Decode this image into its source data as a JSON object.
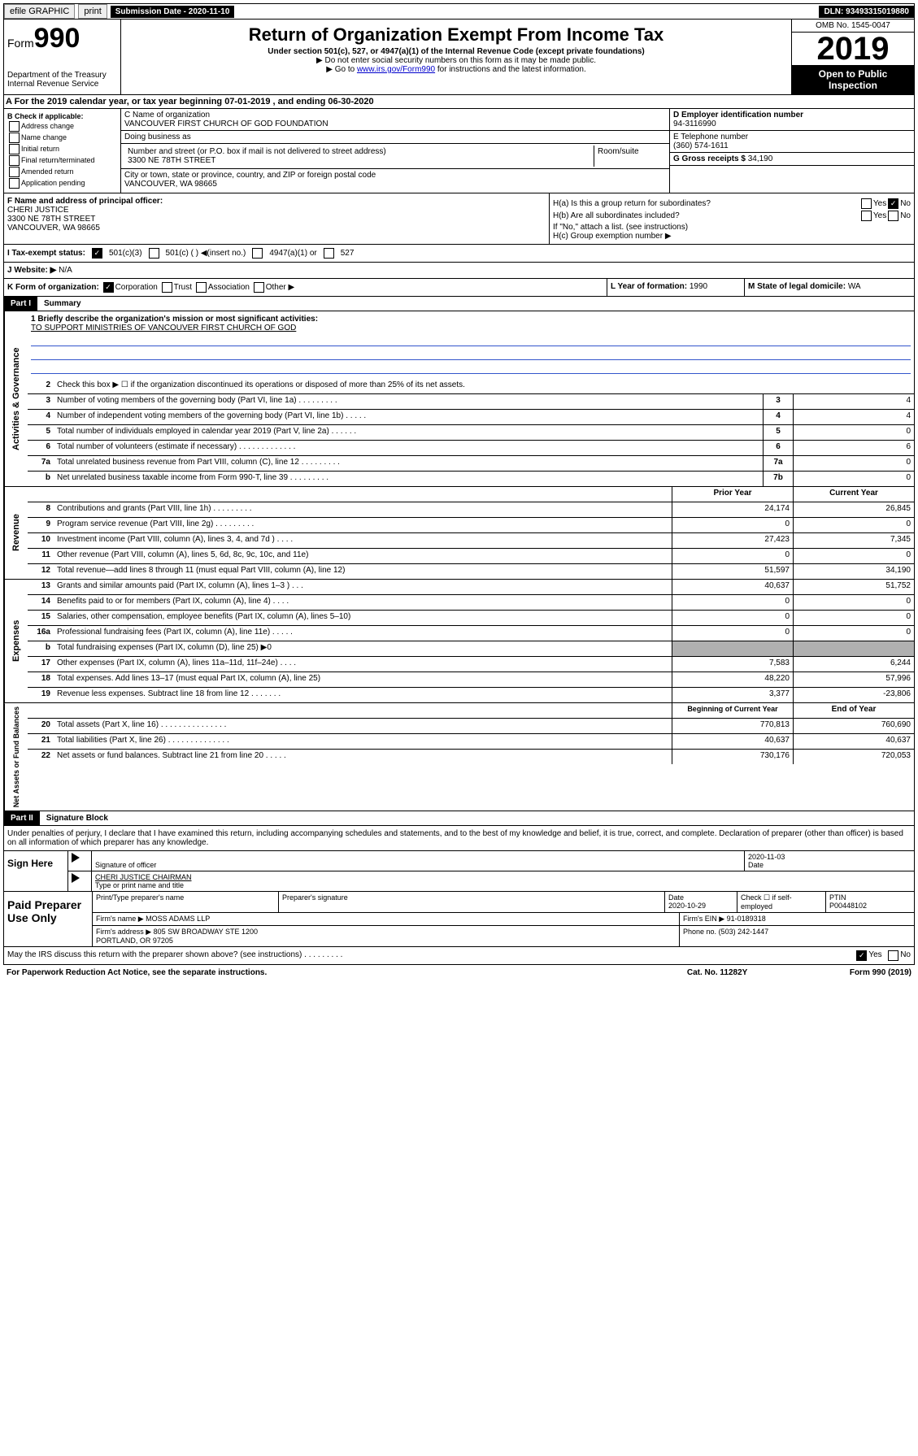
{
  "topbar": {
    "efile": "efile GRAPHIC",
    "print": "print",
    "subdate_lbl": "Submission Date - 2020-11-10",
    "dln": "DLN: 93493315019880"
  },
  "header": {
    "form_lbl": "Form",
    "form_num": "990",
    "title": "Return of Organization Exempt From Income Tax",
    "sub": "Under section 501(c), 527, or 4947(a)(1) of the Internal Revenue Code (except private foundations)",
    "note1": "▶ Do not enter social security numbers on this form as it may be made public.",
    "note2": "▶ Go to ",
    "note2_link": "www.irs.gov/Form990",
    "note2_rest": " for instructions and the latest information.",
    "dept": "Department of the Treasury\nInternal Revenue Service",
    "omb": "OMB No. 1545-0047",
    "year": "2019",
    "open": "Open to Public\nInspection"
  },
  "taxyear": "A For the 2019 calendar year, or tax year beginning 07-01-2019   , and ending 06-30-2020",
  "b": {
    "hdr": "B Check if applicable:",
    "items": [
      "Address change",
      "Name change",
      "Initial return",
      "Final return/terminated",
      "Amended return",
      "Application pending"
    ]
  },
  "c": {
    "name_lbl": "C Name of organization",
    "name": "VANCOUVER FIRST CHURCH OF GOD FOUNDATION",
    "dba_lbl": "Doing business as",
    "dba": "",
    "addr_lbl": "Number and street (or P.O. box if mail is not delivered to street address)",
    "room_lbl": "Room/suite",
    "addr": "3300 NE 78TH STREET",
    "city_lbl": "City or town, state or province, country, and ZIP or foreign postal code",
    "city": "VANCOUVER, WA  98665"
  },
  "d": {
    "ein_lbl": "D Employer identification number",
    "ein": "94-3116990"
  },
  "e": {
    "tel_lbl": "E Telephone number",
    "tel": "(360) 574-1611"
  },
  "g": {
    "lbl": "G Gross receipts $",
    "val": "34,190"
  },
  "f": {
    "lbl": "F  Name and address of principal officer:",
    "name": "CHERI JUSTICE",
    "addr": "3300 NE 78TH STREET\nVANCOUVER, WA  98665"
  },
  "h": {
    "a": "H(a)  Is this a group return for subordinates?",
    "a_yes": "Yes",
    "a_no": "No",
    "b": "H(b)  Are all subordinates included?",
    "b_note": "If \"No,\" attach a list. (see instructions)",
    "c": "H(c)  Group exemption number ▶"
  },
  "i": {
    "lbl": "I  Tax-exempt status:",
    "opts": [
      "501(c)(3)",
      "501(c) (  ) ◀(insert no.)",
      "4947(a)(1) or",
      "527"
    ]
  },
  "j": {
    "lbl": "J  Website: ▶",
    "val": "N/A"
  },
  "k": {
    "lbl": "K Form of organization:",
    "opts": [
      "Corporation",
      "Trust",
      "Association",
      "Other ▶"
    ]
  },
  "l": {
    "lbl": "L Year of formation:",
    "val": "1990"
  },
  "m": {
    "lbl": "M State of legal domicile:",
    "val": "WA"
  },
  "part1": {
    "hdr": "Part I",
    "title": "Summary"
  },
  "mission": {
    "lbl": "1   Briefly describe the organization's mission or most significant activities:",
    "txt": "TO SUPPORT MINISTRIES OF VANCOUVER FIRST CHURCH OF GOD"
  },
  "gov": {
    "side": "Activities & Governance",
    "r2": "Check this box ▶ ☐  if the organization discontinued its operations or disposed of more than 25% of its net assets.",
    "rows": [
      {
        "n": "3",
        "t": "Number of voting members of the governing body (Part VI, line 1a)  .    .    .    .    .    .    .    .    .",
        "c": "3",
        "v": "4"
      },
      {
        "n": "4",
        "t": "Number of independent voting members of the governing body (Part VI, line 1b)  .    .    .    .    .",
        "c": "4",
        "v": "4"
      },
      {
        "n": "5",
        "t": "Total number of individuals employed in calendar year 2019 (Part V, line 2a)  .    .    .    .    .    .",
        "c": "5",
        "v": "0"
      },
      {
        "n": "6",
        "t": "Total number of volunteers (estimate if necessary)  .    .    .    .    .    .    .    .    .    .    .    .    .",
        "c": "6",
        "v": "6"
      },
      {
        "n": "7a",
        "t": "Total unrelated business revenue from Part VIII, column (C), line 12  .    .    .    .    .    .    .    .    .",
        "c": "7a",
        "v": "0"
      },
      {
        "n": "b",
        "t": "Net unrelated business taxable income from Form 990-T, line 39  .    .    .    .    .    .    .    .    .",
        "c": "7b",
        "v": "0"
      }
    ]
  },
  "rev": {
    "side": "Revenue",
    "hdr1": "Prior Year",
    "hdr2": "Current Year",
    "rows": [
      {
        "n": "8",
        "t": "Contributions and grants (Part VIII, line 1h)  .    .    .    .    .    .    .    .    .",
        "p": "24,174",
        "c": "26,845"
      },
      {
        "n": "9",
        "t": "Program service revenue (Part VIII, line 2g)  .    .    .    .    .    .    .    .    .",
        "p": "0",
        "c": "0"
      },
      {
        "n": "10",
        "t": "Investment income (Part VIII, column (A), lines 3, 4, and 7d )  .    .    .    .",
        "p": "27,423",
        "c": "7,345"
      },
      {
        "n": "11",
        "t": "Other revenue (Part VIII, column (A), lines 5, 6d, 8c, 9c, 10c, and 11e)",
        "p": "0",
        "c": "0"
      },
      {
        "n": "12",
        "t": "Total revenue—add lines 8 through 11 (must equal Part VIII, column (A), line 12)",
        "p": "51,597",
        "c": "34,190"
      }
    ]
  },
  "exp": {
    "side": "Expenses",
    "rows": [
      {
        "n": "13",
        "t": "Grants and similar amounts paid (Part IX, column (A), lines 1–3 )  .    .    .",
        "p": "40,637",
        "c": "51,752"
      },
      {
        "n": "14",
        "t": "Benefits paid to or for members (Part IX, column (A), line 4)  .    .    .    .",
        "p": "0",
        "c": "0"
      },
      {
        "n": "15",
        "t": "Salaries, other compensation, employee benefits (Part IX, column (A), lines 5–10)",
        "p": "0",
        "c": "0"
      },
      {
        "n": "16a",
        "t": "Professional fundraising fees (Part IX, column (A), line 11e)  .    .    .    .    .",
        "p": "0",
        "c": "0"
      },
      {
        "n": "b",
        "t": "Total fundraising expenses (Part IX, column (D), line 25) ▶0",
        "shade": true
      },
      {
        "n": "17",
        "t": "Other expenses (Part IX, column (A), lines 11a–11d, 11f–24e)  .    .    .    .",
        "p": "7,583",
        "c": "6,244"
      },
      {
        "n": "18",
        "t": "Total expenses. Add lines 13–17 (must equal Part IX, column (A), line 25)",
        "p": "48,220",
        "c": "57,996"
      },
      {
        "n": "19",
        "t": "Revenue less expenses. Subtract line 18 from line 12  .    .    .    .    .    .    .",
        "p": "3,377",
        "c": "-23,806"
      }
    ]
  },
  "na": {
    "side": "Net Assets or Fund Balances",
    "hdr1": "Beginning of Current Year",
    "hdr2": "End of Year",
    "rows": [
      {
        "n": "20",
        "t": "Total assets (Part X, line 16)  .    .    .    .    .    .    .    .    .    .    .    .    .    .    .",
        "p": "770,813",
        "c": "760,690"
      },
      {
        "n": "21",
        "t": "Total liabilities (Part X, line 26)  .    .    .    .    .    .    .    .    .    .    .    .    .    .",
        "p": "40,637",
        "c": "40,637"
      },
      {
        "n": "22",
        "t": "Net assets or fund balances. Subtract line 21 from line 20  .    .    .    .    .",
        "p": "730,176",
        "c": "720,053"
      }
    ]
  },
  "part2": {
    "hdr": "Part II",
    "title": "Signature Block"
  },
  "decl": "Under penalties of perjury, I declare that I have examined this return, including accompanying schedules and statements, and to the best of my knowledge and belief, it is true, correct, and complete. Declaration of preparer (other than officer) is based on all information of which preparer has any knowledge.",
  "sign": {
    "lbl": "Sign Here",
    "sig_lbl": "Signature of officer",
    "date_lbl": "Date",
    "date": "2020-11-03",
    "name": "CHERI JUSTICE CHAIRMAN",
    "name_lbl": "Type or print name and title"
  },
  "paid": {
    "lbl": "Paid Preparer Use Only",
    "h1": "Print/Type preparer's name",
    "h2": "Preparer's signature",
    "h3": "Date",
    "h3v": "2020-10-29",
    "h4": "Check ☐ if self-employed",
    "h5": "PTIN",
    "h5v": "P00448102",
    "firm_lbl": "Firm's name    ▶",
    "firm": "MOSS ADAMS LLP",
    "ein_lbl": "Firm's EIN ▶",
    "ein": "91-0189318",
    "addr_lbl": "Firm's address ▶",
    "addr": "805 SW BROADWAY STE 1200\nPORTLAND, OR  97205",
    "ph_lbl": "Phone no.",
    "ph": "(503) 242-1447"
  },
  "discuss": {
    "q": "May the IRS discuss this return with the preparer shown above? (see instructions)  .    .    .    .    .    .    .    .    .",
    "yes": "Yes",
    "no": "No"
  },
  "foot": {
    "l": "For Paperwork Reduction Act Notice, see the separate instructions.",
    "m": "Cat. No. 11282Y",
    "r": "Form 990 (2019)"
  }
}
